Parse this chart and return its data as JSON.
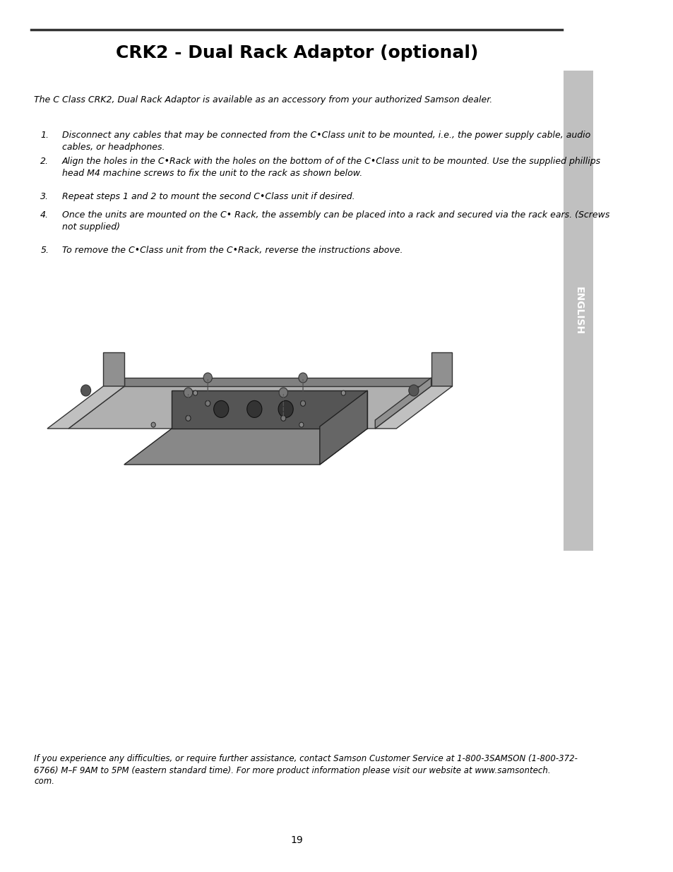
{
  "title": "CRK2 - Dual Rack Adaptor (optional)",
  "title_fontsize": 18,
  "title_fontweight": "bold",
  "bg_color": "#ffffff",
  "page_number": "19",
  "sidebar_color": "#c0c0c0",
  "sidebar_text": "ENGLISH",
  "sidebar_text_color": "#ffffff",
  "intro_text": "The C Class CRK2, Dual Rack Adaptor is available as an accessory from your authorized Samson dealer.",
  "steps": [
    "Disconnect any cables that may be connected from the C•Class unit to be mounted, i.e., the power supply cable, audio cables, or headphones.",
    "Align the holes in the C•Rack with the holes on the bottom of of the C•Class unit to be mounted. Use the supplied phillips head M4 machine screws to fix the unit to the rack as shown below.",
    "Repeat steps 1 and 2 to mount the second C•Class unit if desired.",
    "Once the units are mounted on the C• Rack, the assembly can be placed into a rack and secured via the rack ears. (Screws not supplied)",
    "To remove the C•Class unit from the C•Rack, reverse the instructions above."
  ],
  "footer_text": "If you experience any difficulties, or require further assistance, contact Samson Customer Service at 1-800-3SAMSON (1-800-372-6766) M–F 9AM to 5PM (eastern standard time). For more product information please visit our website at www.samsontech.com.",
  "line_color": "#333333",
  "text_color": "#000000",
  "intro_fontsize": 9,
  "step_fontsize": 9,
  "footer_fontsize": 8.5
}
